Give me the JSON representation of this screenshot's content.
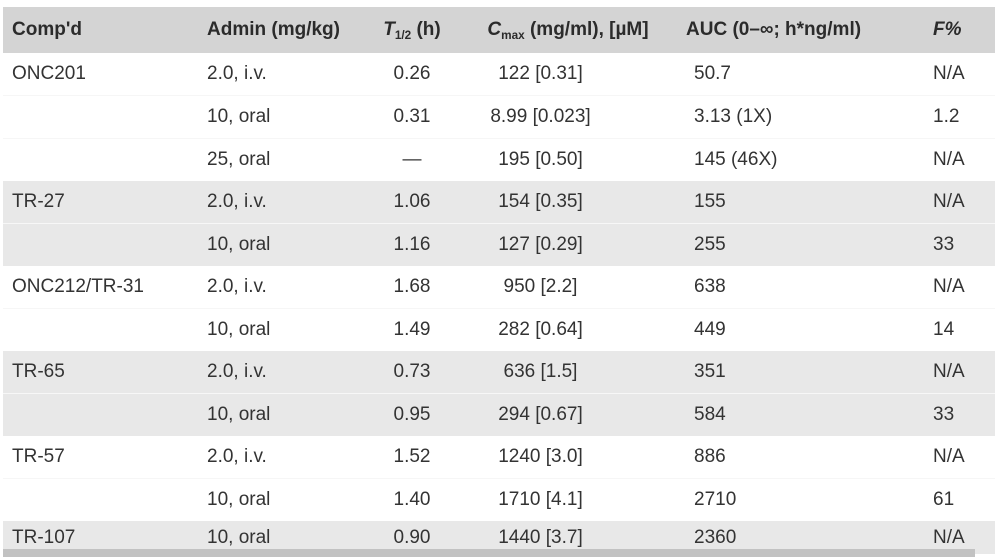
{
  "palette": {
    "header_bg": "#d4d4d4",
    "band_gray": "#e8e8e8",
    "band_white": "#ffffff",
    "bottom_bar": "#c2c2c2",
    "text": "#333333"
  },
  "header": {
    "compd": "Comp'd",
    "admin": "Admin (mg/kg)",
    "t12": {
      "symbol": "T",
      "sub": "1/2",
      "rest": " (h)"
    },
    "cmax": {
      "symbol": "C",
      "sub": "max",
      "rest": " (mg/ml), [µM]"
    },
    "auc": "AUC (0–∞; h*ng/ml)",
    "f": "F%"
  },
  "chart_data": {
    "type": "table",
    "columns": [
      "Comp'd",
      "Admin (mg/kg)",
      "T1/2 (h)",
      "Cmax (mg/ml), [µM]",
      "AUC (0–∞; h*ng/ml)",
      "F%"
    ],
    "rows": [
      [
        "ONC201",
        "2.0, i.v.",
        "0.26",
        "122 [0.31]",
        "50.7",
        "N/A"
      ],
      [
        "",
        "10, oral",
        "0.31",
        "8.99 [0.023]",
        "3.13 (1X)",
        "1.2"
      ],
      [
        "",
        "25, oral",
        "—",
        "195 [0.50]",
        "145 (46X)",
        "N/A"
      ],
      [
        "TR-27",
        "2.0, i.v.",
        "1.06",
        "154 [0.35]",
        "155",
        "N/A"
      ],
      [
        "",
        "10, oral",
        "1.16",
        "127 [0.29]",
        "255",
        "33"
      ],
      [
        "ONC212/TR-31",
        "2.0, i.v.",
        "1.68",
        "950 [2.2]",
        "638",
        "N/A"
      ],
      [
        "",
        "10, oral",
        "1.49",
        "282 [0.64]",
        "449",
        "14"
      ],
      [
        "TR-65",
        "2.0, i.v.",
        "0.73",
        "636 [1.5]",
        "351",
        "N/A"
      ],
      [
        "",
        "10, oral",
        "0.95",
        "294 [0.67]",
        "584",
        "33"
      ],
      [
        "TR-57",
        "2.0, i.v.",
        "1.52",
        "1240 [3.0]",
        "886",
        "N/A"
      ],
      [
        "",
        "10, oral",
        "1.40",
        "1710 [4.1]",
        "2710",
        "61"
      ],
      [
        "TR-107",
        "10, oral",
        "0.90",
        "1440 [3.7]",
        "2360",
        "N/A"
      ]
    ]
  }
}
